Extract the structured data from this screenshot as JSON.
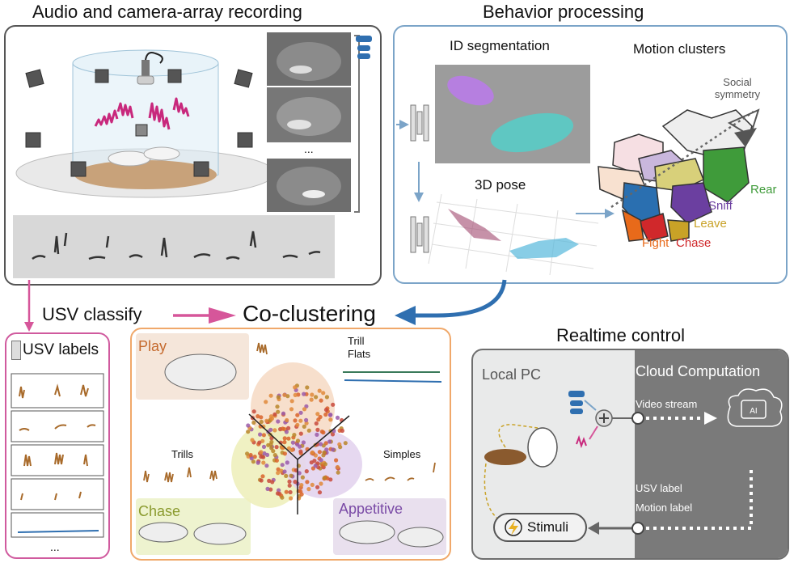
{
  "sections": {
    "recording": "Audio and camera-array recording",
    "behavior": "Behavior processing",
    "realtime": "Realtime control"
  },
  "behavior": {
    "id_segmentation": "ID segmentation",
    "motion_clusters": "Motion clusters",
    "pose_3d": "3D pose",
    "social_symmetry": "Social symmetry",
    "clusters": [
      {
        "label": "Rear",
        "color": "#3f9b3a"
      },
      {
        "label": "Sniff",
        "color": "#6b3fa0"
      },
      {
        "label": "Leave",
        "color": "#c9a227"
      },
      {
        "label": "Fight",
        "color": "#e86a1a"
      },
      {
        "label": "Chase",
        "color": "#d0282b"
      }
    ]
  },
  "recording": {
    "ellipsis": "..."
  },
  "flow": {
    "usv_classify": "USV classify",
    "co_clustering": "Co-clustering"
  },
  "usv_labels": {
    "title": "USV labels",
    "ellipsis": "..."
  },
  "coclustering": {
    "play": "Play",
    "trill_flats": [
      "Trill",
      "Flats"
    ],
    "trills": "Trills",
    "simples": "Simples",
    "chase": "Chase",
    "appetitive": "Appetitive"
  },
  "realtime": {
    "local_pc": "Local PC",
    "cloud": "Cloud Computation",
    "video_stream": "Video stream",
    "usv_label": "USV label",
    "motion_label": "Motion label",
    "stimuli": "Stimuli",
    "ai": "AI"
  },
  "colors": {
    "recording_border": "#555555",
    "behavior_border": "#7ba4c8",
    "usv_border": "#d05a9e",
    "coclustering_border": "#f0a86a",
    "realtime_border": "#6e6e6e",
    "arrow_pink": "#d6569a",
    "arrow_blue": "#2f6fb0",
    "cloud_bg": "#7a7a7a",
    "localpc_bg": "#e9eaea"
  }
}
